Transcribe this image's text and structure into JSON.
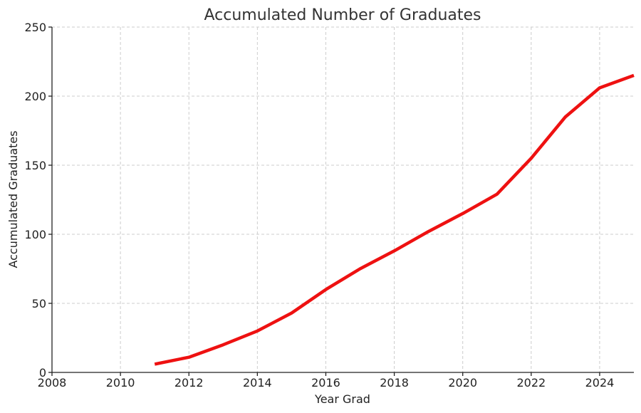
{
  "chart_data": {
    "type": "line",
    "title": "Accumulated Number of Graduates",
    "xlabel": "Year Grad",
    "ylabel": "Accumulated Graduates",
    "xlim": [
      2008,
      2025
    ],
    "ylim": [
      0,
      250
    ],
    "xticks": [
      2008,
      2010,
      2012,
      2014,
      2016,
      2018,
      2020,
      2022,
      2024
    ],
    "yticks": [
      0,
      50,
      100,
      150,
      200,
      250
    ],
    "grid": true,
    "series": [
      {
        "color": "#ee1111",
        "x": [
          2011,
          2012,
          2013,
          2014,
          2015,
          2016,
          2017,
          2018,
          2019,
          2020,
          2021,
          2022,
          2023,
          2024,
          2025
        ],
        "y": [
          6,
          11,
          20,
          30,
          43,
          60,
          75,
          88,
          102,
          115,
          129,
          155,
          185,
          206,
          215
        ]
      }
    ]
  }
}
